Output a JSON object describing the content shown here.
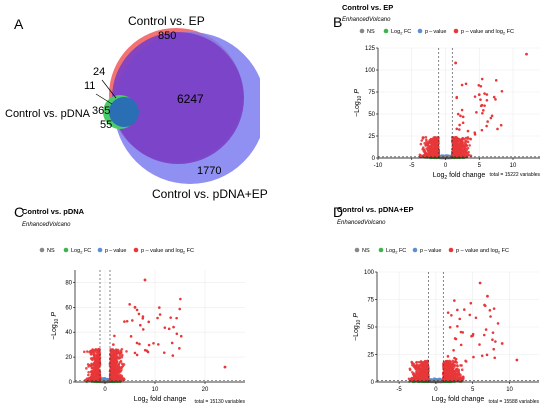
{
  "panels": {
    "a": "A",
    "b": "B",
    "c": "C",
    "d": "D"
  },
  "venn": {
    "label_ep": "Control vs. EP",
    "label_pdna": "Control vs. pDNA",
    "label_pdna_ep": "Control vs. pDNA+EP",
    "n_850": "850",
    "n_24": "24",
    "n_11": "11",
    "n_365": "365",
    "n_55": "55",
    "n_6247": "6247",
    "n_1770": "1770",
    "colors": {
      "ep": "#f26a6a",
      "pdna_ep": "#7d7df0",
      "pdna": "#2a6fb3",
      "overlap": "#7a3fc6",
      "green": "#4cc96a"
    }
  },
  "legend": {
    "ns": "NS",
    "log2fc_main": "Log",
    "log2fc_sub": "2",
    "log2fc_tail": " FC",
    "pvalue": "p – value",
    "both_main": "p – value and log",
    "both_sub": "2",
    "both_tail": " FC",
    "colors": {
      "ns": "#888888",
      "log2fc": "#3bb54a",
      "pvalue": "#5b8ed6",
      "both": "#e8373a"
    }
  },
  "common": {
    "subtitle": "EnhancedVolcano",
    "ylabel_main": "−Log",
    "ylabel_sub": "10",
    "ylabel_p": "P",
    "xlabel_main": "Log",
    "xlabel_sub": "2",
    "xlabel_tail": " fold change"
  },
  "chart_data": [
    {
      "id": "B",
      "type": "scatter",
      "title": "Control vs. EP",
      "subtitle": "EnhancedVolcano",
      "ylim": [
        0,
        125
      ],
      "xlim": [
        -10,
        14
      ],
      "yticks": [
        0,
        25,
        50,
        75,
        100,
        125
      ],
      "xticks": [
        -10,
        -5,
        0,
        5,
        10
      ],
      "fc_cutoff": [
        -1,
        1
      ],
      "p_cutoff": 1.3,
      "caption": "total = 15222 variables",
      "outliers": [
        [
          12,
          118
        ],
        [
          5,
          72
        ],
        [
          1.5,
          108
        ]
      ]
    },
    {
      "id": "C",
      "type": "scatter",
      "title": "Control vs. pDNA",
      "subtitle": "EnhancedVolcano",
      "ylim": [
        0,
        90
      ],
      "xlim": [
        -6,
        28
      ],
      "yticks": [
        0,
        20,
        40,
        60,
        80
      ],
      "xticks": [
        0,
        10,
        20
      ],
      "fc_cutoff": [
        -1,
        1
      ],
      "p_cutoff": 1.3,
      "caption": "total = 15130 variables",
      "outliers": [
        [
          24,
          12
        ],
        [
          8,
          82
        ],
        [
          6,
          60
        ]
      ]
    },
    {
      "id": "D",
      "type": "scatter",
      "title": "Control vs. pDNA+EP",
      "subtitle": "EnhancedVolcano",
      "ylim": [
        0,
        100
      ],
      "xlim": [
        -8,
        14
      ],
      "yticks": [
        0,
        25,
        50,
        75,
        100
      ],
      "xticks": [
        -5,
        0,
        5,
        10
      ],
      "fc_cutoff": [
        -1,
        1
      ],
      "p_cutoff": 1.3,
      "caption": "total = 15588 variables",
      "outliers": [
        [
          6,
          90
        ],
        [
          7,
          78
        ],
        [
          11,
          20
        ],
        [
          9,
          35
        ]
      ]
    }
  ]
}
